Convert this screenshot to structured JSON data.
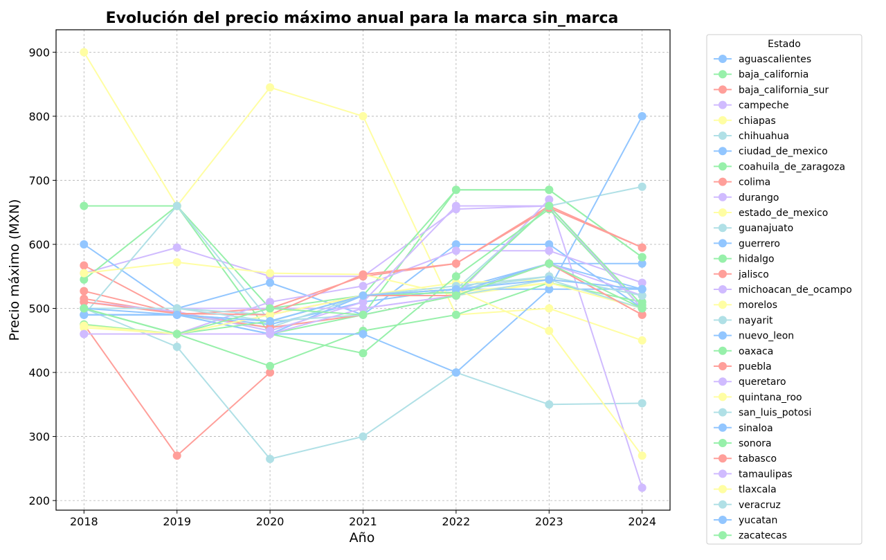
{
  "chart_data": {
    "type": "line",
    "title": "Evolución del precio máximo anual para la marca sin_marca",
    "xlabel": "Año",
    "ylabel": "Precio máximo (MXN)",
    "x": [
      2018,
      2019,
      2020,
      2021,
      2022,
      2023,
      2024
    ],
    "xlim": [
      2017.7,
      2024.3
    ],
    "ylim": [
      185,
      935
    ],
    "yticks": [
      200,
      300,
      400,
      500,
      600,
      700,
      800,
      900
    ],
    "grid": true,
    "legend_title": "Estado",
    "legend_position": "outside-right",
    "series": [
      {
        "name": "aguascalientes",
        "color": "#92c6ff",
        "values": [
          490,
          490,
          475,
          510,
          530,
          570,
          570
        ]
      },
      {
        "name": "baja_california",
        "color": "#97f0aa",
        "values": [
          660,
          660,
          460,
          490,
          685,
          685,
          580
        ]
      },
      {
        "name": "baja_california_sur",
        "color": "#ff9f9a",
        "values": [
          475,
          270,
          400,
          null,
          null,
          null,
          null
        ]
      },
      {
        "name": "campeche",
        "color": "#d0bbff",
        "values": [
          555,
          595,
          550,
          550,
          655,
          660,
          500
        ]
      },
      {
        "name": "chiapas",
        "color": "#fffea3",
        "values": [
          900,
          660,
          845,
          800,
          490,
          500,
          450
        ]
      },
      {
        "name": "chihuahua",
        "color": "#b0e0e6",
        "values": [
          500,
          440,
          265,
          300,
          400,
          350,
          352
        ]
      },
      {
        "name": "ciudad_de_mexico",
        "color": "#92c6ff",
        "values": [
          600,
          500,
          540,
          490,
          600,
          600,
          500
        ]
      },
      {
        "name": "coahuila_de_zaragoza",
        "color": "#97f0aa",
        "values": [
          545,
          660,
          500,
          520,
          685,
          685,
          580
        ]
      },
      {
        "name": "colima",
        "color": "#ff9f9a",
        "values": [
          567,
          490,
          500,
          550,
          570,
          660,
          595
        ]
      },
      {
        "name": "durango",
        "color": "#d0bbff",
        "values": [
          460,
          460,
          510,
          535,
          590,
          590,
          540
        ]
      },
      {
        "name": "estado_de_mexico",
        "color": "#fffea3",
        "values": [
          555,
          572,
          555,
          553,
          520,
          540,
          500
        ]
      },
      {
        "name": "guanajuato",
        "color": "#b0e0e6",
        "values": [
          490,
          490,
          470,
          520,
          530,
          660,
          690
        ]
      },
      {
        "name": "guerrero",
        "color": "#92c6ff",
        "values": [
          490,
          490,
          460,
          520,
          530,
          530,
          800
        ]
      },
      {
        "name": "hidalgo",
        "color": "#97f0aa",
        "values": [
          500,
          460,
          410,
          465,
          490,
          540,
          510
        ]
      },
      {
        "name": "jalisco",
        "color": "#ff9f9a",
        "values": [
          527,
          492,
          470,
          490,
          520,
          570,
          490
        ]
      },
      {
        "name": "michoacan_de_ocampo",
        "color": "#d0bbff",
        "values": [
          500,
          500,
          500,
          500,
          520,
          670,
          220
        ]
      },
      {
        "name": "morelos",
        "color": "#fffea3",
        "values": [
          475,
          460,
          490,
          520,
          540,
          545,
          530
        ]
      },
      {
        "name": "nayarit",
        "color": "#b0e0e6",
        "values": [
          500,
          500,
          490,
          520,
          535,
          550,
          520
        ]
      },
      {
        "name": "nuevo_leon",
        "color": "#92c6ff",
        "values": [
          490,
          490,
          460,
          460,
          400,
          530,
          530
        ]
      },
      {
        "name": "oaxaca",
        "color": "#97f0aa",
        "values": [
          475,
          460,
          460,
          430,
          550,
          655,
          500
        ]
      },
      {
        "name": "puebla",
        "color": "#ff9f9a",
        "values": [
          515,
          492,
          490,
          553,
          570,
          657,
          595
        ]
      },
      {
        "name": "queretaro",
        "color": "#d0bbff",
        "values": [
          510,
          495,
          465,
          510,
          660,
          660,
          500
        ]
      },
      {
        "name": "quintana_roo",
        "color": "#fffea3",
        "values": [
          470,
          460,
          490,
          520,
          525,
          540,
          500
        ]
      },
      {
        "name": "san_luis_potosi",
        "color": "#b0e0e6",
        "values": [
          490,
          660,
          480,
          490,
          520,
          545,
          500
        ]
      },
      {
        "name": "sinaloa",
        "color": "#92c6ff",
        "values": [
          490,
          490,
          480,
          520,
          525,
          570,
          530
        ]
      },
      {
        "name": "sonora",
        "color": "#97f0aa",
        "values": [
          500,
          460,
          480,
          520,
          525,
          660,
          505
        ]
      },
      {
        "name": "tabasco",
        "color": "#ff9f9a",
        "values": [
          510,
          492,
          490,
          520,
          520,
          570,
          490
        ]
      },
      {
        "name": "tamaulipas",
        "color": "#d0bbff",
        "values": [
          460,
          460,
          460,
          500,
          520,
          570,
          520
        ]
      },
      {
        "name": "tlaxcala",
        "color": "#fffea3",
        "values": [
          473,
          460,
          490,
          520,
          530,
          465,
          270
        ]
      },
      {
        "name": "veracruz",
        "color": "#b0e0e6",
        "values": [
          500,
          500,
          480,
          520,
          530,
          550,
          520
        ]
      },
      {
        "name": "yucatan",
        "color": "#92c6ff",
        "values": [
          500,
          490,
          480,
          520,
          530,
          545,
          530
        ]
      },
      {
        "name": "zacatecas",
        "color": "#97f0aa",
        "values": [
          500,
          460,
          500,
          490,
          520,
          570,
          500
        ]
      }
    ]
  }
}
